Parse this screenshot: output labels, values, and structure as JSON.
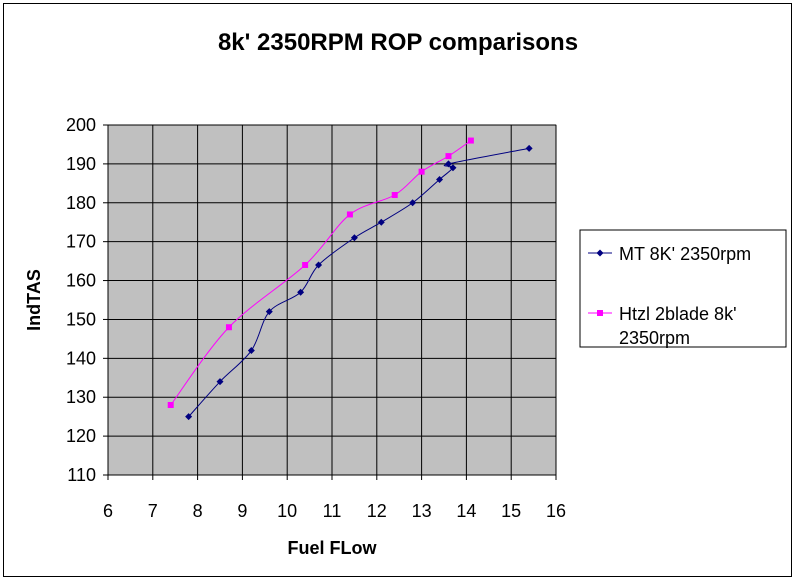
{
  "chart_data": {
    "type": "line",
    "title": "8k' 2350RPM ROP comparisons",
    "xlabel": "Fuel FLow",
    "ylabel": "IndTAS",
    "xlim": [
      6,
      16
    ],
    "ylim": [
      110,
      200
    ],
    "x_ticks": [
      6,
      7,
      8,
      9,
      10,
      11,
      12,
      13,
      14,
      15,
      16
    ],
    "y_ticks": [
      110,
      120,
      130,
      140,
      150,
      160,
      170,
      180,
      190,
      200
    ],
    "grid": true,
    "plot_background": "#c0c0c0",
    "legend_position": "right",
    "series": [
      {
        "name": "MT 8K' 2350rpm",
        "color": "#000080",
        "marker": "diamond",
        "points": [
          {
            "x": 15.4,
            "y": 194
          },
          {
            "x": 13.6,
            "y": 190
          },
          {
            "x": 13.7,
            "y": 189
          },
          {
            "x": 13.4,
            "y": 186
          },
          {
            "x": 12.8,
            "y": 180
          },
          {
            "x": 12.1,
            "y": 175
          },
          {
            "x": 11.5,
            "y": 171
          },
          {
            "x": 10.7,
            "y": 164
          },
          {
            "x": 10.3,
            "y": 157
          },
          {
            "x": 9.6,
            "y": 152
          },
          {
            "x": 9.2,
            "y": 142
          },
          {
            "x": 8.5,
            "y": 134
          },
          {
            "x": 7.8,
            "y": 125
          }
        ]
      },
      {
        "name": "Htzl 2blade 8k' 2350rpm",
        "color": "#ff00ff",
        "marker": "square",
        "points": [
          {
            "x": 14.1,
            "y": 196
          },
          {
            "x": 13.6,
            "y": 192
          },
          {
            "x": 13.0,
            "y": 188
          },
          {
            "x": 12.4,
            "y": 182
          },
          {
            "x": 11.4,
            "y": 177
          },
          {
            "x": 10.4,
            "y": 164
          },
          {
            "x": 8.7,
            "y": 148
          },
          {
            "x": 7.4,
            "y": 128
          }
        ]
      }
    ]
  },
  "legend": {
    "entries": [
      {
        "lines": [
          "MT 8K' 2350rpm"
        ]
      },
      {
        "lines": [
          "Htzl 2blade 8k'",
          "2350rpm"
        ]
      }
    ]
  }
}
